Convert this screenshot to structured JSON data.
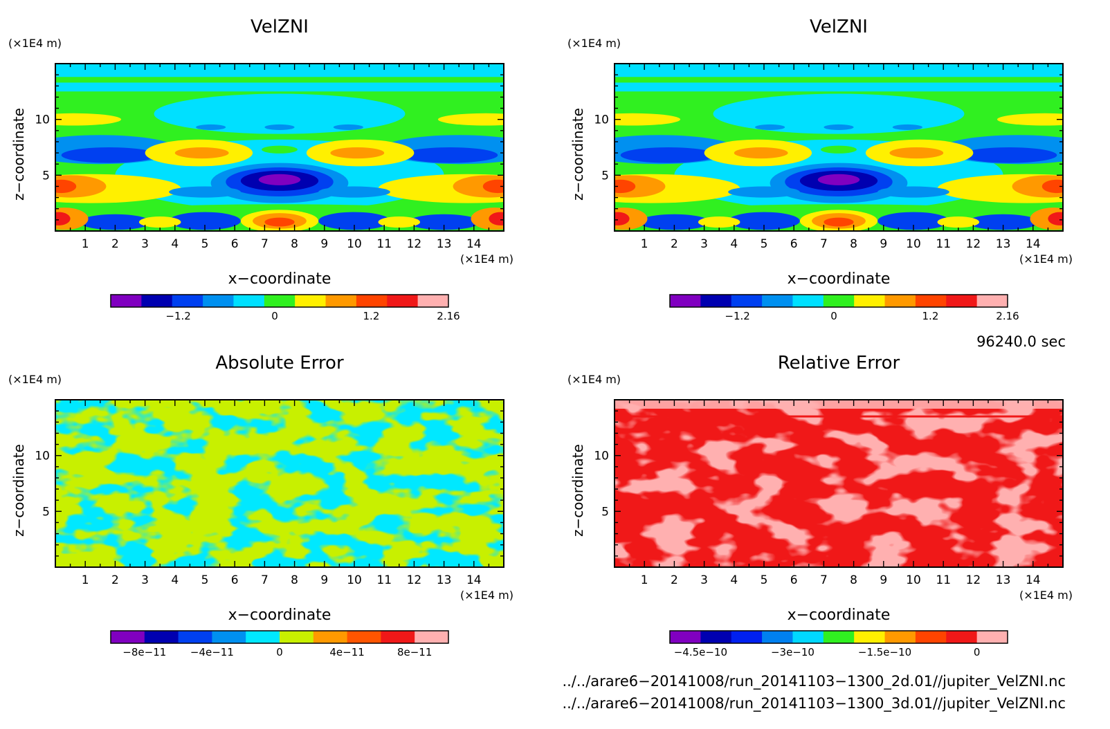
{
  "chart_data": [
    {
      "type": "heatmap",
      "title": "VelZNI",
      "xlabel": "x−coordinate",
      "ylabel": "z−coordinate",
      "x_unit": "(×1E4 m)",
      "y_unit": "(×1E4 m)",
      "x_ticks": [
        "1",
        "2",
        "3",
        "4",
        "5",
        "6",
        "7",
        "8",
        "9",
        "10",
        "11",
        "12",
        "13",
        "14"
      ],
      "y_ticks": [
        "5",
        "10"
      ],
      "xlim": [
        0,
        15
      ],
      "ylim": [
        0,
        15
      ],
      "colorbar": {
        "colors": [
          "#8000c0",
          "#0000b0",
          "#0040f0",
          "#0090f0",
          "#00e0ff",
          "#30f020",
          "#fff000",
          "#ff9900",
          "#ff4400",
          "#f01818",
          "#ffb0b0"
        ],
        "tick_values": [
          -1.2,
          0,
          1.2,
          2.16
        ],
        "tick_labels": [
          "−1.2",
          "0",
          "1.2",
          "2.16"
        ],
        "range": [
          -2.04,
          2.16
        ]
      }
    },
    {
      "type": "heatmap",
      "title": "VelZNI",
      "xlabel": "x−coordinate",
      "ylabel": "z−coordinate",
      "x_unit": "(×1E4 m)",
      "y_unit": "(×1E4 m)",
      "x_ticks": [
        "1",
        "2",
        "3",
        "4",
        "5",
        "6",
        "7",
        "8",
        "9",
        "10",
        "11",
        "12",
        "13",
        "14"
      ],
      "y_ticks": [
        "5",
        "10"
      ],
      "xlim": [
        0,
        15
      ],
      "ylim": [
        0,
        15
      ],
      "colorbar": {
        "colors": [
          "#8000c0",
          "#0000b0",
          "#0040f0",
          "#0090f0",
          "#00e0ff",
          "#30f020",
          "#fff000",
          "#ff9900",
          "#ff4400",
          "#f01818",
          "#ffb0b0"
        ],
        "tick_values": [
          -1.2,
          0,
          1.2,
          2.16
        ],
        "tick_labels": [
          "−1.2",
          "0",
          "1.2",
          "2.16"
        ],
        "range": [
          -2.04,
          2.16
        ]
      }
    },
    {
      "type": "heatmap",
      "title": "Absolute Error",
      "xlabel": "x−coordinate",
      "ylabel": "z−coordinate",
      "x_unit": "(×1E4 m)",
      "y_unit": "(×1E4 m)",
      "x_ticks": [
        "1",
        "2",
        "3",
        "4",
        "5",
        "6",
        "7",
        "8",
        "9",
        "10",
        "11",
        "12",
        "13",
        "14"
      ],
      "y_ticks": [
        "5",
        "10"
      ],
      "xlim": [
        0,
        15
      ],
      "ylim": [
        0,
        15
      ],
      "colorbar": {
        "colors": [
          "#8000c0",
          "#0000b0",
          "#0040f0",
          "#0090f0",
          "#00e8ff",
          "#c8f000",
          "#ff9900",
          "#ff5500",
          "#f01818",
          "#ffb0b0"
        ],
        "tick_values": [
          -8e-11,
          -4e-11,
          0,
          4e-11,
          8e-11
        ],
        "tick_labels": [
          "−8e−11",
          "−4e−11",
          "0",
          "4e−11",
          "8e−11"
        ],
        "range": [
          -1e-10,
          1e-10
        ]
      }
    },
    {
      "type": "heatmap",
      "title": "Relative Error",
      "xlabel": "x−coordinate",
      "ylabel": "z−coordinate",
      "x_unit": "(×1E4 m)",
      "y_unit": "(×1E4 m)",
      "x_ticks": [
        "1",
        "2",
        "3",
        "4",
        "5",
        "6",
        "7",
        "8",
        "9",
        "10",
        "11",
        "12",
        "13",
        "14"
      ],
      "y_ticks": [
        "5",
        "10"
      ],
      "xlim": [
        0,
        15
      ],
      "ylim": [
        0,
        15
      ],
      "colorbar": {
        "colors": [
          "#8000c0",
          "#0000b0",
          "#0020f0",
          "#0080f0",
          "#00d8ff",
          "#30f020",
          "#fff000",
          "#ff9900",
          "#ff4400",
          "#f01818",
          "#ffb0b0"
        ],
        "tick_values": [
          -4.5e-10,
          -3e-10,
          -1.5e-10,
          0
        ],
        "tick_labels": [
          "−4.5e−10",
          "−3e−10",
          "−1.5e−10",
          "0"
        ],
        "range": [
          -5e-10,
          5e-11
        ]
      }
    }
  ],
  "time_label": "96240.0 sec",
  "file_paths": [
    "../../arare6−20141008/run_20141103−1300_2d.01//jupiter_VelZNI.nc",
    "../../arare6−20141008/run_20141103−1300_3d.01//jupiter_VelZNI.nc"
  ]
}
